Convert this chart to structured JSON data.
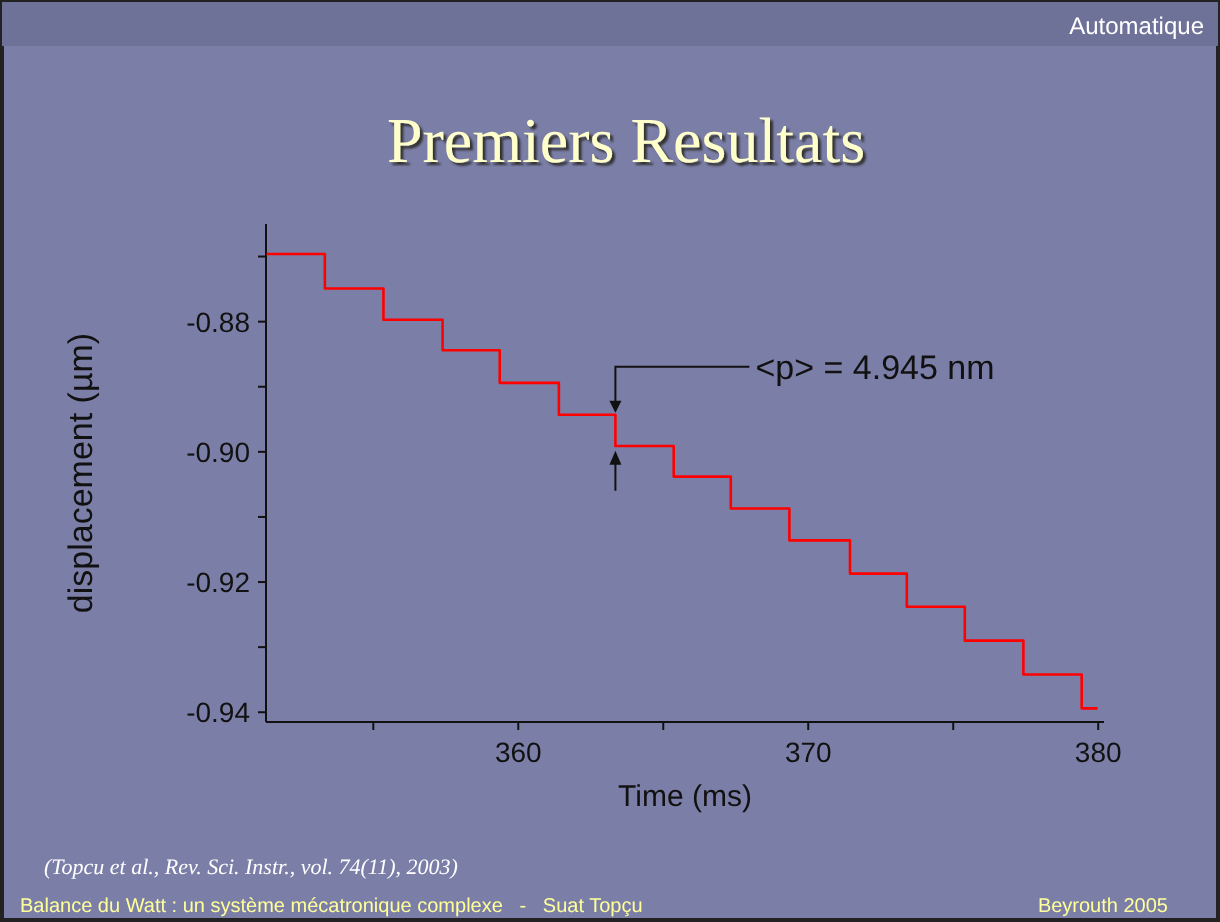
{
  "chart_data": {
    "type": "step",
    "title": "Premiers Resultats",
    "xlabel": "Time (ms)",
    "ylabel": "displacement (µm)",
    "x": [
      351.32,
      353.33,
      355.35,
      357.39,
      359.36,
      361.4,
      363.35,
      365.36,
      367.33,
      369.35,
      371.44,
      373.4,
      375.4,
      377.42,
      379.43,
      379.98
    ],
    "series": [
      {
        "color": "#ff0000",
        "values": [
          -0.8696,
          -0.8749,
          -0.8797,
          -0.8844,
          -0.8894,
          -0.8943,
          -0.8991,
          -0.9038,
          -0.9087,
          -0.9136,
          -0.9187,
          -0.9238,
          -0.929,
          -0.9342,
          -0.9394,
          -0.9394
        ]
      }
    ],
    "xlim": [
      351.3,
      380.2
    ],
    "ylim": [
      -0.9415,
      -0.865
    ],
    "xticks": [
      {
        "value": 355,
        "label": null
      },
      360,
      {
        "value": 365,
        "label": null
      },
      370,
      {
        "value": 375,
        "label": null
      },
      380
    ],
    "yticks": [
      {
        "value": -0.94,
        "label": "-0.94"
      },
      {
        "value": -0.93,
        "label": null
      },
      {
        "value": -0.92,
        "label": "-0.92"
      },
      {
        "value": -0.91,
        "label": null
      },
      {
        "value": -0.9,
        "label": "-0.90"
      },
      {
        "value": -0.89,
        "label": null
      },
      {
        "value": -0.88,
        "label": "-0.88"
      },
      {
        "value": -0.87,
        "label": null
      }
    ],
    "grid": false,
    "line_style": "solid",
    "marker": "none",
    "annotations": [
      {
        "text": "<p> = 4.945 nm",
        "x": 363.35,
        "y": -0.8943
      },
      "(Topcu et al.,  Rev. Sci. Instr., vol. 74(11), 2003)",
      "Balance du Watt : un système mécatronique complexe   -   Suat Topçu",
      "Beyrouth 2005",
      "Automatique"
    ]
  }
}
